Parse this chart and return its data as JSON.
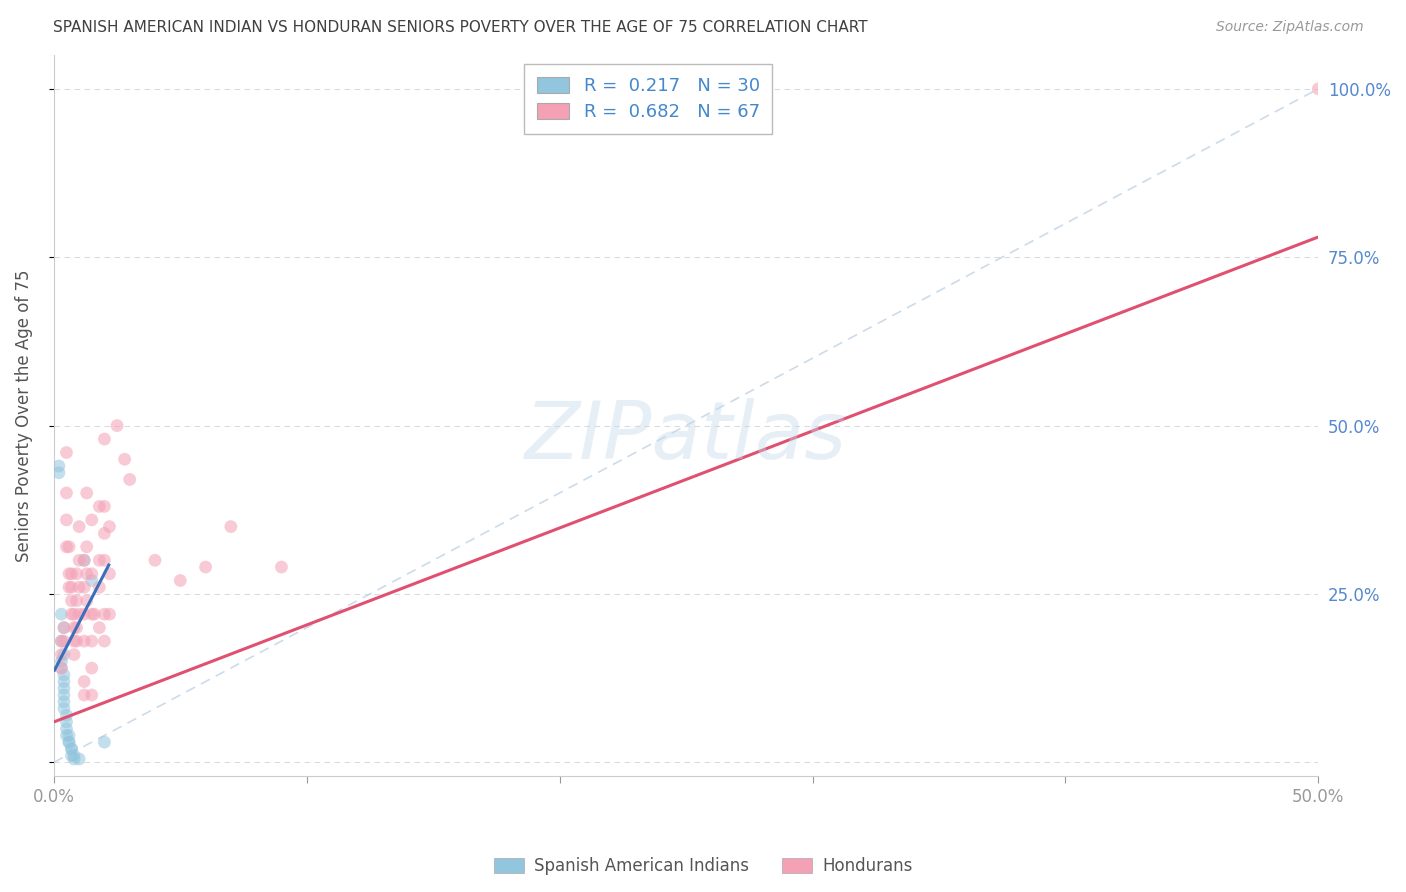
{
  "title": "SPANISH AMERICAN INDIAN VS HONDURAN SENIORS POVERTY OVER THE AGE OF 75 CORRELATION CHART",
  "source": "Source: ZipAtlas.com",
  "ylabel": "Seniors Poverty Over the Age of 75",
  "xlim": [
    0.0,
    0.5
  ],
  "ylim": [
    -0.02,
    1.05
  ],
  "ytick_values": [
    0.0,
    0.25,
    0.5,
    0.75,
    1.0
  ],
  "ytick_labels_right": [
    "25.0%",
    "50.0%",
    "75.0%",
    "100.0%"
  ],
  "ytick_values_right": [
    0.25,
    0.5,
    0.75,
    1.0
  ],
  "xtick_values": [
    0.0,
    0.1,
    0.2,
    0.3,
    0.4,
    0.5
  ],
  "blue_R": 0.217,
  "blue_N": 30,
  "pink_R": 0.682,
  "pink_N": 67,
  "blue_color": "#92c5de",
  "pink_color": "#f4a0b5",
  "blue_line_color": "#3a6fba",
  "pink_line_color": "#e05070",
  "diag_line_color": "#b8cce0",
  "legend_blue_color": "#4488cc",
  "legend_pink_color": "#4488cc",
  "background_color": "#ffffff",
  "grid_color": "#cccccc",
  "title_color": "#404040",
  "right_tick_color": "#5588cc",
  "blue_scatter": [
    [
      0.002,
      0.44
    ],
    [
      0.002,
      0.43
    ],
    [
      0.003,
      0.22
    ],
    [
      0.003,
      0.18
    ],
    [
      0.003,
      0.15
    ],
    [
      0.003,
      0.14
    ],
    [
      0.004,
      0.2
    ],
    [
      0.004,
      0.16
    ],
    [
      0.004,
      0.13
    ],
    [
      0.004,
      0.12
    ],
    [
      0.004,
      0.11
    ],
    [
      0.004,
      0.1
    ],
    [
      0.004,
      0.09
    ],
    [
      0.004,
      0.08
    ],
    [
      0.005,
      0.07
    ],
    [
      0.005,
      0.06
    ],
    [
      0.005,
      0.05
    ],
    [
      0.005,
      0.04
    ],
    [
      0.006,
      0.04
    ],
    [
      0.006,
      0.03
    ],
    [
      0.006,
      0.03
    ],
    [
      0.007,
      0.02
    ],
    [
      0.007,
      0.02
    ],
    [
      0.007,
      0.01
    ],
    [
      0.008,
      0.01
    ],
    [
      0.008,
      0.005
    ],
    [
      0.01,
      0.005
    ],
    [
      0.012,
      0.3
    ],
    [
      0.015,
      0.27
    ],
    [
      0.02,
      0.03
    ]
  ],
  "pink_scatter": [
    [
      0.003,
      0.18
    ],
    [
      0.003,
      0.16
    ],
    [
      0.003,
      0.14
    ],
    [
      0.004,
      0.2
    ],
    [
      0.004,
      0.18
    ],
    [
      0.005,
      0.46
    ],
    [
      0.005,
      0.4
    ],
    [
      0.005,
      0.36
    ],
    [
      0.005,
      0.32
    ],
    [
      0.006,
      0.32
    ],
    [
      0.006,
      0.28
    ],
    [
      0.006,
      0.26
    ],
    [
      0.007,
      0.28
    ],
    [
      0.007,
      0.26
    ],
    [
      0.007,
      0.24
    ],
    [
      0.007,
      0.22
    ],
    [
      0.008,
      0.22
    ],
    [
      0.008,
      0.2
    ],
    [
      0.008,
      0.18
    ],
    [
      0.008,
      0.16
    ],
    [
      0.009,
      0.28
    ],
    [
      0.009,
      0.24
    ],
    [
      0.009,
      0.2
    ],
    [
      0.009,
      0.18
    ],
    [
      0.01,
      0.35
    ],
    [
      0.01,
      0.3
    ],
    [
      0.01,
      0.26
    ],
    [
      0.01,
      0.22
    ],
    [
      0.012,
      0.3
    ],
    [
      0.012,
      0.26
    ],
    [
      0.012,
      0.22
    ],
    [
      0.012,
      0.18
    ],
    [
      0.012,
      0.12
    ],
    [
      0.012,
      0.1
    ],
    [
      0.013,
      0.4
    ],
    [
      0.013,
      0.32
    ],
    [
      0.013,
      0.28
    ],
    [
      0.013,
      0.24
    ],
    [
      0.015,
      0.36
    ],
    [
      0.015,
      0.28
    ],
    [
      0.015,
      0.22
    ],
    [
      0.015,
      0.18
    ],
    [
      0.015,
      0.14
    ],
    [
      0.015,
      0.1
    ],
    [
      0.016,
      0.22
    ],
    [
      0.018,
      0.38
    ],
    [
      0.018,
      0.3
    ],
    [
      0.018,
      0.26
    ],
    [
      0.018,
      0.2
    ],
    [
      0.02,
      0.48
    ],
    [
      0.02,
      0.38
    ],
    [
      0.02,
      0.34
    ],
    [
      0.02,
      0.3
    ],
    [
      0.02,
      0.22
    ],
    [
      0.02,
      0.18
    ],
    [
      0.022,
      0.35
    ],
    [
      0.022,
      0.28
    ],
    [
      0.022,
      0.22
    ],
    [
      0.025,
      0.5
    ],
    [
      0.028,
      0.45
    ],
    [
      0.03,
      0.42
    ],
    [
      0.04,
      0.3
    ],
    [
      0.05,
      0.27
    ],
    [
      0.06,
      0.29
    ],
    [
      0.07,
      0.35
    ],
    [
      0.09,
      0.29
    ],
    [
      0.5,
      1.0
    ]
  ],
  "blue_line_x": [
    0.0,
    0.022
  ],
  "blue_line_y": [
    0.135,
    0.295
  ],
  "pink_line_x": [
    0.0,
    0.5
  ],
  "pink_line_y": [
    0.06,
    0.78
  ],
  "diag_line_x": [
    0.0,
    0.5
  ],
  "diag_line_y": [
    0.0,
    1.0
  ],
  "watermark": "ZIPatlas",
  "marker_size": 85,
  "marker_alpha": 0.55,
  "line_width": 2.2
}
